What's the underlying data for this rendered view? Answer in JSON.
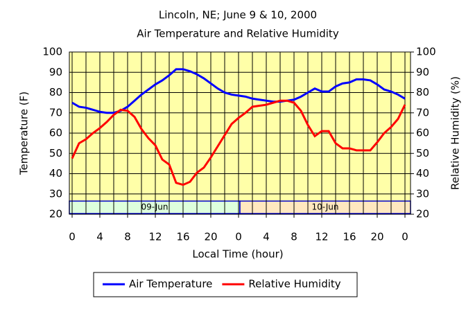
{
  "chart_data": {
    "type": "line",
    "title": "Lincoln, NE; June 9 & 10, 2000",
    "subtitle": "Air Temperature and Relative Humidity",
    "xlabel": "Local Time (hour)",
    "ylabel": "Temperature (F)",
    "y2label": "Relative Humidity (%)",
    "x": [
      0,
      1,
      2,
      3,
      4,
      5,
      6,
      7,
      8,
      9,
      10,
      11,
      12,
      13,
      14,
      15,
      16,
      17,
      18,
      19,
      20,
      21,
      22,
      23,
      24,
      25,
      26,
      27,
      28,
      29,
      30,
      31,
      32,
      33,
      34,
      35,
      36,
      37,
      38,
      39,
      40,
      41,
      42,
      43,
      44,
      45,
      46,
      47,
      48
    ],
    "series": [
      {
        "name": "Air Temperature",
        "color": "#0000ff",
        "axis": "y",
        "values": [
          75,
          73,
          72.5,
          71.5,
          70.5,
          70,
          70,
          71,
          73,
          76,
          79,
          81.5,
          84,
          86,
          88.5,
          91.5,
          91.5,
          90.5,
          89,
          87,
          84.5,
          82,
          80,
          79,
          78.5,
          78,
          77,
          76.5,
          76,
          75.5,
          75.5,
          76,
          76.5,
          78,
          80,
          82,
          80.5,
          80.5,
          83,
          84.5,
          85,
          86.5,
          86.5,
          86,
          84,
          81.5,
          80.5,
          79,
          77
        ]
      },
      {
        "name": "Relative Humidity",
        "color": "#ff0000",
        "axis": "y2",
        "values": [
          47.5,
          55,
          57,
          60,
          62.5,
          65.5,
          69,
          71.5,
          71,
          68,
          62,
          57.5,
          54,
          47,
          44.5,
          35.5,
          34.5,
          36,
          40.5,
          43,
          48,
          53.5,
          59,
          64.5,
          67.5,
          70,
          73,
          73.5,
          74,
          75,
          76,
          76,
          75,
          71,
          64,
          58.5,
          61,
          61,
          55,
          52.5,
          52.5,
          51.5,
          51.5,
          51.5,
          55.5,
          60,
          63,
          67,
          74
        ]
      }
    ],
    "xlim": [
      -0.4,
      48.8
    ],
    "xticks": [
      {
        "value": 0,
        "label": "0"
      },
      {
        "value": 4,
        "label": "4"
      },
      {
        "value": 8,
        "label": "8"
      },
      {
        "value": 12,
        "label": "12"
      },
      {
        "value": 16,
        "label": "16"
      },
      {
        "value": 20,
        "label": "20"
      },
      {
        "value": 24,
        "label": "0"
      },
      {
        "value": 28,
        "label": "4"
      },
      {
        "value": 32,
        "label": "8"
      },
      {
        "value": 36,
        "label": "12"
      },
      {
        "value": 40,
        "label": "16"
      },
      {
        "value": 44,
        "label": "20"
      },
      {
        "value": 48,
        "label": "0"
      }
    ],
    "ylim": [
      20,
      100
    ],
    "yticks": [
      20,
      30,
      40,
      50,
      60,
      70,
      80,
      90,
      100
    ],
    "y2lim": [
      20,
      100
    ],
    "y2ticks": [
      20,
      30,
      40,
      50,
      60,
      70,
      80,
      90,
      100
    ],
    "day_labels": [
      "09-Jun",
      "10-Jun"
    ],
    "grid": true,
    "legend": "bottom"
  }
}
